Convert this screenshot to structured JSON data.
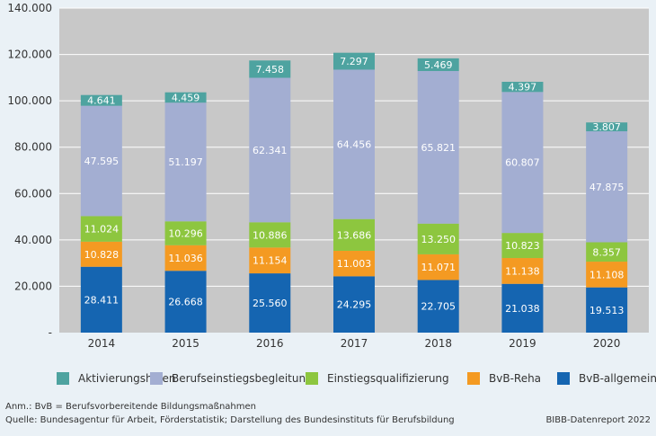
{
  "chart_data": {
    "type": "bar",
    "stacked": true,
    "categories": [
      "2014",
      "2015",
      "2016",
      "2017",
      "2018",
      "2019",
      "2020"
    ],
    "ylim": [
      0,
      140000
    ],
    "yticks": [
      {
        "value": 0,
        "label": "-"
      },
      {
        "value": 20000,
        "label": "20.000"
      },
      {
        "value": 40000,
        "label": "40.000"
      },
      {
        "value": 60000,
        "label": "60.000"
      },
      {
        "value": 80000,
        "label": "80.000"
      },
      {
        "value": 100000,
        "label": "100.000"
      },
      {
        "value": 120000,
        "label": "120.000"
      },
      {
        "value": 140000,
        "label": "140.000"
      }
    ],
    "grid": true,
    "legend_position": "bottom",
    "series": [
      {
        "name": "BvB-allgemein",
        "color": "#1565b1",
        "label_color": "#ffffff",
        "values": [
          28411,
          26668,
          25560,
          24295,
          22705,
          21038,
          19513
        ],
        "labels": [
          "28.411",
          "26.668",
          "25.560",
          "24.295",
          "22.705",
          "21.038",
          "19.513"
        ]
      },
      {
        "name": "BvB-Reha",
        "color": "#f49a22",
        "label_color": "#ffffff",
        "values": [
          10828,
          11036,
          11154,
          11003,
          11071,
          11138,
          11108
        ],
        "labels": [
          "10.828",
          "11.036",
          "11.154",
          "11.003",
          "11.071",
          "11.138",
          "11.108"
        ]
      },
      {
        "name": "Einstiegsqualifizierung",
        "color": "#8dc63f",
        "label_color": "#ffffff",
        "values": [
          11024,
          10296,
          10886,
          13686,
          13250,
          10823,
          8357
        ],
        "labels": [
          "11.024",
          "10.296",
          "10.886",
          "13.686",
          "13.250",
          "10.823",
          "8.357"
        ]
      },
      {
        "name": "Berufseinstiegsbegleitung",
        "color": "#a3aed2",
        "label_color": "#ffffff",
        "values": [
          47595,
          51197,
          62341,
          64456,
          65821,
          60807,
          47875
        ],
        "labels": [
          "47.595",
          "51.197",
          "62.341",
          "64.456",
          "65.821",
          "60.807",
          "47.875"
        ]
      },
      {
        "name": "Aktivierungshilfen",
        "color": "#4ea3a0",
        "label_color": "#ffffff",
        "values": [
          4641,
          4459,
          7458,
          7297,
          5469,
          4397,
          3807
        ],
        "labels": [
          "4.641",
          "4.459",
          "7.458",
          "7.297",
          "5.469",
          "4.397",
          "3.807"
        ]
      }
    ],
    "legend_order": [
      "Aktivierungshilfen",
      "Berufseinstiegsbegleitung",
      "Einstiegsqualifizierung",
      "BvB-Reha",
      "BvB-allgemein"
    ]
  },
  "colors": {
    "plot_background": "#c8c8c8",
    "page_background": "#eaf1f6",
    "gridline": "#ffffff"
  },
  "footer": {
    "note": "Anm.: BvB = Berufsvorbereitende Bildungsmaßnahmen",
    "source": "Quelle: Bundesagentur für Arbeit, Förderstatistik; Darstellung des Bundesinstituts für Berufsbildung",
    "brand": "BIBB-Datenreport 2022"
  }
}
